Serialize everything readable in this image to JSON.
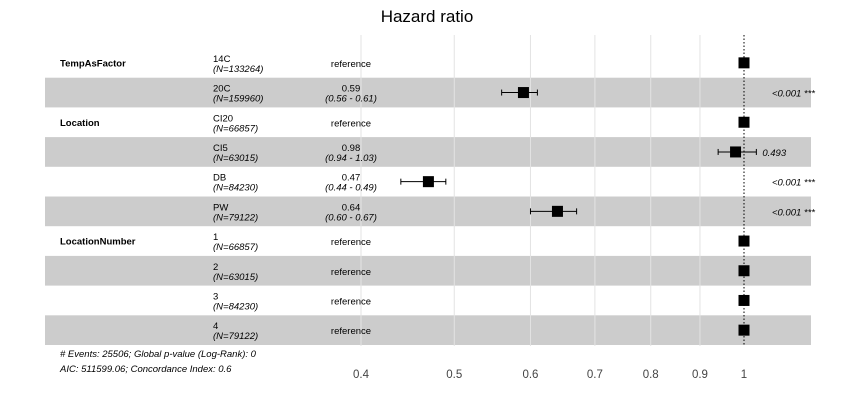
{
  "chart_data": {
    "type": "forest",
    "title": "Hazard ratio",
    "x_scale": "log",
    "xlim": [
      0.35,
      1.12
    ],
    "x_ticks": [
      0.4,
      0.5,
      0.6,
      0.7,
      0.8,
      0.9,
      1
    ],
    "x_tick_labels": [
      "0.4",
      "0.5",
      "0.6",
      "0.7",
      "0.8",
      "0.9",
      "1"
    ],
    "reference_line": 1,
    "grid": true,
    "rows": [
      {
        "variable": "TempAsFactor",
        "level": "14C",
        "n": "(N=133264)",
        "estimate_label": "reference",
        "ci_label": "",
        "hr": 1,
        "lo": null,
        "hi": null,
        "p": "",
        "shaded": false
      },
      {
        "variable": "",
        "level": "20C",
        "n": "(N=159960)",
        "estimate_label": "0.59",
        "ci_label": "(0.56 - 0.61)",
        "hr": 0.59,
        "lo": 0.56,
        "hi": 0.61,
        "p": "<0.001 ***",
        "shaded": true
      },
      {
        "variable": "Location",
        "level": "CI20",
        "n": "(N=66857)",
        "estimate_label": "reference",
        "ci_label": "",
        "hr": 1,
        "lo": null,
        "hi": null,
        "p": "",
        "shaded": false
      },
      {
        "variable": "",
        "level": "CI5",
        "n": "(N=63015)",
        "estimate_label": "0.98",
        "ci_label": "(0.94 - 1.03)",
        "hr": 0.98,
        "lo": 0.94,
        "hi": 1.03,
        "p": "0.493",
        "shaded": true
      },
      {
        "variable": "",
        "level": "DB",
        "n": "(N=84230)",
        "estimate_label": "0.47",
        "ci_label": "(0.44 - 0.49)",
        "hr": 0.47,
        "lo": 0.44,
        "hi": 0.49,
        "p": "<0.001 ***",
        "shaded": false
      },
      {
        "variable": "",
        "level": "PW",
        "n": "(N=79122)",
        "estimate_label": "0.64",
        "ci_label": "(0.60 - 0.67)",
        "hr": 0.64,
        "lo": 0.6,
        "hi": 0.67,
        "p": "<0.001 ***",
        "shaded": true
      },
      {
        "variable": "LocationNumber",
        "level": "1",
        "n": "(N=66857)",
        "estimate_label": "reference",
        "ci_label": "",
        "hr": 1,
        "lo": null,
        "hi": null,
        "p": "",
        "shaded": false
      },
      {
        "variable": "",
        "level": "2",
        "n": "(N=63015)",
        "estimate_label": "reference",
        "ci_label": "",
        "hr": 1,
        "lo": null,
        "hi": null,
        "p": "",
        "shaded": true
      },
      {
        "variable": "",
        "level": "3",
        "n": "(N=84230)",
        "estimate_label": "reference",
        "ci_label": "",
        "hr": 1,
        "lo": null,
        "hi": null,
        "p": "",
        "shaded": false
      },
      {
        "variable": "",
        "level": "4",
        "n": "(N=79122)",
        "estimate_label": "reference",
        "ci_label": "",
        "hr": 1,
        "lo": null,
        "hi": null,
        "p": "",
        "shaded": true
      }
    ],
    "footnote_line1": "# Events: 25506; Global p-value (Log-Rank): 0",
    "footnote_line2": "AIC: 511599.06; Concordance Index: 0.6"
  },
  "colors": {
    "band": "#cccccc",
    "grid": "#e3e3e3",
    "marker": "#000000",
    "text": "#000000",
    "tick_text": "#444444"
  }
}
